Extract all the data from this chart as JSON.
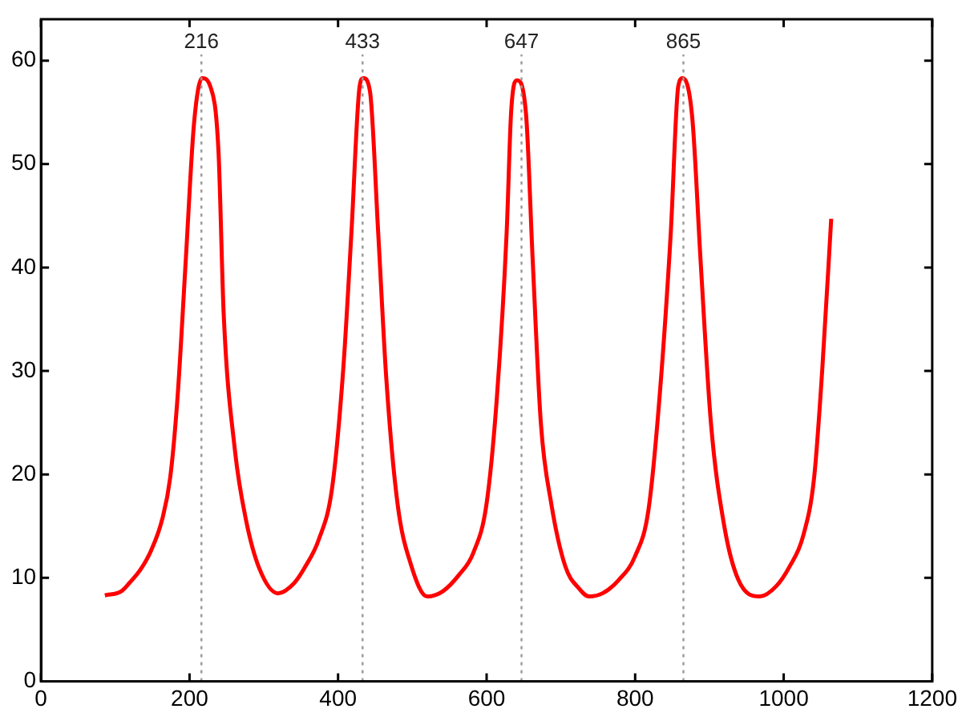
{
  "chart_data": {
    "type": "line",
    "x": [
      86,
      108,
      119,
      134,
      148,
      163,
      174,
      184,
      195,
      206,
      217,
      228,
      239,
      246,
      261,
      276,
      294,
      319,
      341,
      356,
      374,
      392,
      407,
      418,
      429,
      434,
      443,
      454,
      465,
      480,
      498,
      520,
      541,
      563,
      582,
      600,
      614,
      627,
      633,
      641,
      653,
      662,
      673,
      687,
      706,
      724,
      738,
      756,
      778,
      800,
      818,
      833,
      848,
      858,
      864,
      877,
      888,
      902,
      920,
      939,
      968,
      990,
      1008,
      1026,
      1041,
      1052,
      1064
    ],
    "series": [
      {
        "color": "#ff0000",
        "values": [
          8.3,
          8.7,
          9.5,
          10.8,
          12.6,
          15.6,
          19.7,
          27.6,
          40.8,
          53.9,
          58.3,
          57.5,
          51.2,
          35.5,
          22.4,
          15.6,
          10.9,
          8.5,
          9.5,
          11.1,
          13.7,
          18.7,
          30.2,
          43.4,
          57.5,
          58.3,
          57,
          43.4,
          29.2,
          17.2,
          11.3,
          8.2,
          8.7,
          10.3,
          12.4,
          17.2,
          27.6,
          43.4,
          55,
          58.1,
          54.9,
          40.8,
          25,
          17.2,
          11.1,
          9,
          8.2,
          8.5,
          9.8,
          12.1,
          16.6,
          27.6,
          43.4,
          57.5,
          58.3,
          54.4,
          40.8,
          25,
          15,
          9.8,
          8.2,
          9.2,
          11.1,
          14,
          19.7,
          30.2,
          44.7
        ]
      }
    ],
    "xlim": [
      0,
      1200
    ],
    "xticks": [
      0,
      200,
      400,
      600,
      800,
      1000,
      1200
    ],
    "ylim": [
      0,
      64
    ],
    "yticks": [
      0,
      10,
      20,
      30,
      40,
      50,
      60
    ],
    "grid": false,
    "legend": false,
    "marker": "none",
    "line_style": "solid",
    "ref_lines": [
      {
        "axis": "x",
        "value": 216,
        "label": "216",
        "color": "#999999",
        "line_style": "dotted"
      },
      {
        "axis": "x",
        "value": 433,
        "label": "433",
        "color": "#999999",
        "line_style": "dotted"
      },
      {
        "axis": "x",
        "value": 647,
        "label": "647",
        "color": "#999999",
        "line_style": "dotted"
      },
      {
        "axis": "x",
        "value": 865,
        "label": "865",
        "color": "#999999",
        "line_style": "dotted"
      }
    ]
  }
}
